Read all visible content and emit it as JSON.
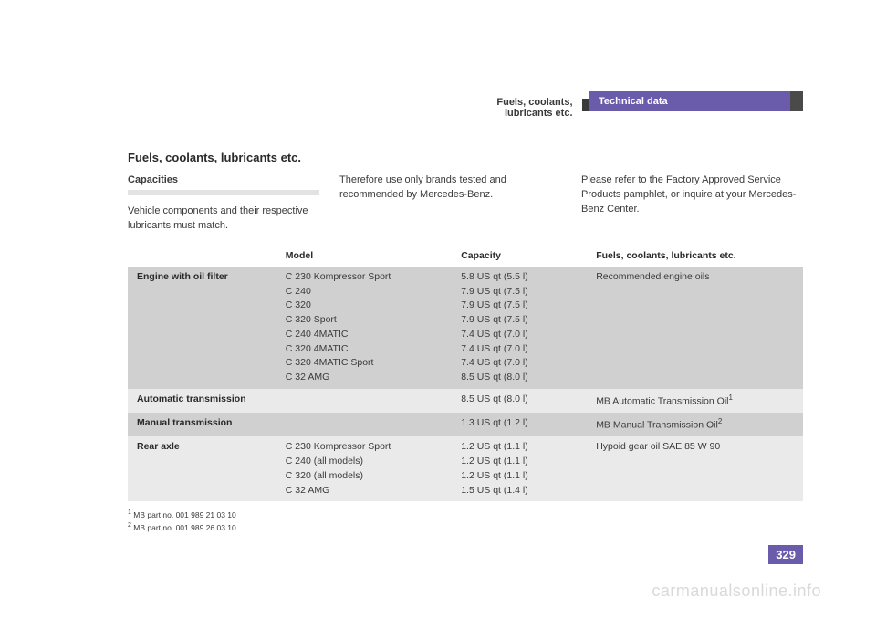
{
  "header": {
    "tab": "Technical data",
    "subtitle": "Fuels, coolants, lubricants etc."
  },
  "section_heading": "Fuels, coolants, lubricants etc.",
  "intro": {
    "subhead": "Capacities",
    "col1": "Vehicle components and their respective lubricants must match.",
    "col2": "Therefore use only brands tested and recommended by Mercedes-Benz.",
    "col3": "Please refer to the Factory Approved Service Products pamphlet, or inquire at your Mercedes-Benz Center."
  },
  "table": {
    "headers": [
      "",
      "Model",
      "Capacity",
      "Fuels, coolants, lubricants etc."
    ],
    "rows": [
      {
        "shade": "dark",
        "label": "Engine with oil filter",
        "model": "C 230 Kompressor Sport\nC 240\nC 320\nC 320 Sport\nC 240 4MATIC\nC 320 4MATIC\nC 320 4MATIC Sport\nC 32 AMG",
        "capacity": "5.8 US qt (5.5 l)\n7.9 US qt (7.5 l)\n7.9 US qt (7.5 l)\n7.9 US qt (7.5 l)\n7.4 US qt (7.0 l)\n7.4 US qt (7.0 l)\n7.4 US qt (7.0 l)\n8.5 US qt (8.0 l)",
        "fluid": "Recommended engine oils"
      },
      {
        "shade": "light",
        "label": "Automatic transmission",
        "model": "",
        "capacity": "8.5 US qt (8.0 l)",
        "fluid": "MB Automatic Transmission Oil",
        "sup": "1"
      },
      {
        "shade": "dark",
        "label": "Manual transmission",
        "model": "",
        "capacity": "1.3 US qt (1.2 l)",
        "fluid": "MB Manual Transmission Oil",
        "sup": "2"
      },
      {
        "shade": "light",
        "label": "Rear axle",
        "model": "C 230 Kompressor Sport\nC 240 (all models)\nC 320 (all models)\nC 32 AMG",
        "capacity": "1.2 US qt (1.1 l)\n1.2 US qt (1.1 l)\n1.2 US qt (1.1 l)\n1.5 US qt (1.4 l)",
        "fluid": "Hypoid gear oil SAE 85 W 90"
      }
    ]
  },
  "footnotes": [
    {
      "num": "1",
      "text": "MB part no. 001 989 21 03 10"
    },
    {
      "num": "2",
      "text": "MB part no. 001 989 26 03 10"
    }
  ],
  "page_number": "329",
  "watermark": "carmanualsonline.info",
  "colors": {
    "accent": "#6a5caa",
    "dark_row": "#d0d0d0",
    "light_row": "#eaeaea"
  },
  "col_widths": [
    "22%",
    "26%",
    "20%",
    "32%"
  ]
}
